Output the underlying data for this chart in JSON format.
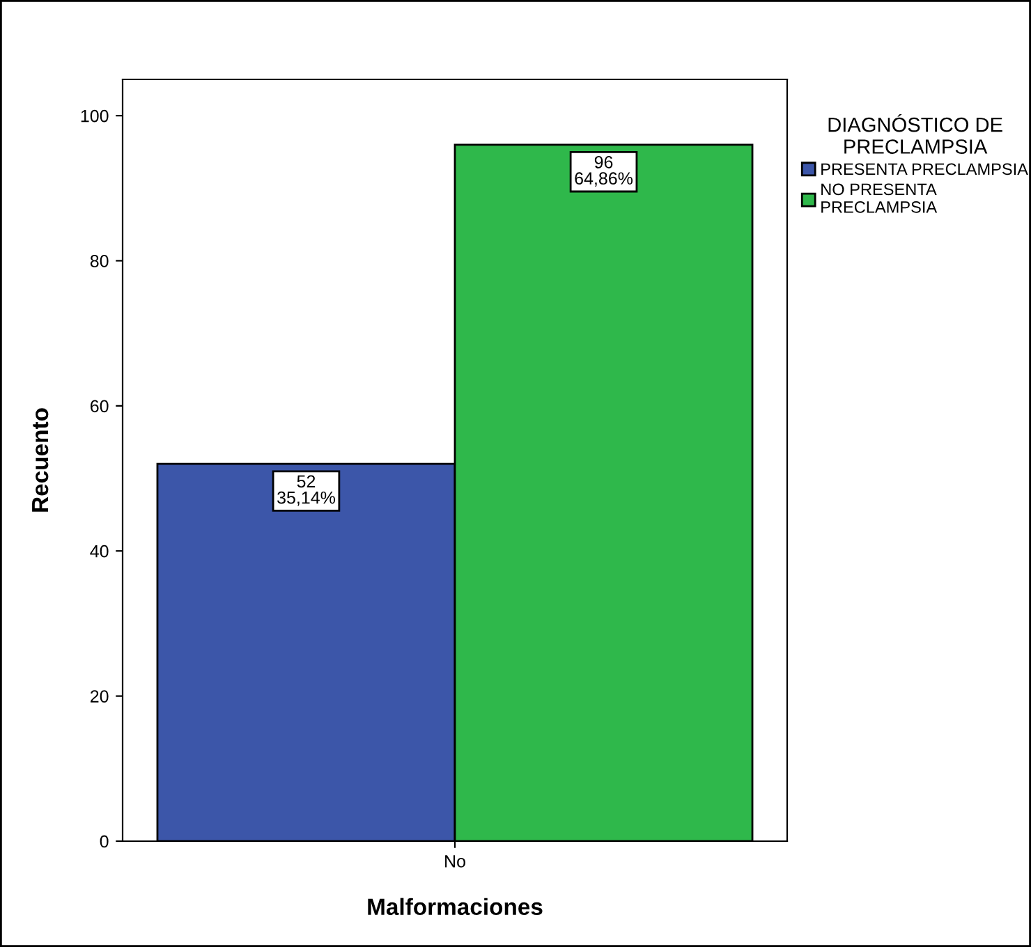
{
  "chart_data": {
    "type": "bar",
    "xlabel": "Malformaciones",
    "ylabel": "Recuento",
    "legend_title": "DIAGNÓSTICO DE\nPRECLAMPSIA",
    "categories": [
      "No"
    ],
    "series": [
      {
        "name": "PRESENTA PRECLAMPSIA",
        "color": "#3c56a9",
        "values": [
          52
        ],
        "value_labels": [
          "52\n35,14%"
        ]
      },
      {
        "name": "NO PRESENTA\nPRECLAMPSIA",
        "color": "#2fb84b",
        "values": [
          96
        ],
        "value_labels": [
          "96\n64,86%"
        ]
      }
    ],
    "ylim": [
      0,
      105
    ],
    "yticks": [
      0,
      20,
      40,
      60,
      80,
      100
    ],
    "grid": false,
    "legend": "right"
  }
}
